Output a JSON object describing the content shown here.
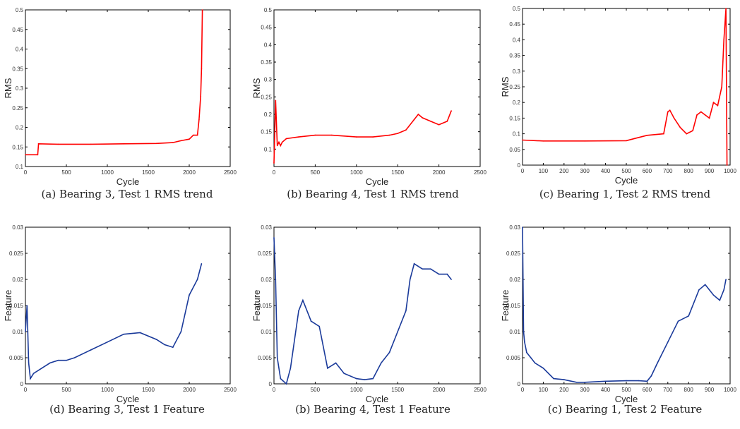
{
  "colors": {
    "rms": "#ff0000",
    "feature": "#1a3a9a",
    "axis": "#000000"
  },
  "chart_data": [
    {
      "type": "line",
      "caption": "(a) Bearing 3, Test 1 RMS trend",
      "xlabel": "Cycle",
      "ylabel": "RMS",
      "xlim": [
        0,
        2500
      ],
      "ylim": [
        0.1,
        0.5
      ],
      "xticks": [
        0,
        500,
        1000,
        1500,
        2000,
        2500
      ],
      "xtick_labels": [
        "0",
        "500",
        "1000",
        "1500",
        "2000",
        "2500"
      ],
      "yticks": [
        0.1,
        0.15,
        0.2,
        0.25,
        0.3,
        0.35,
        0.4,
        0.45,
        0.5
      ],
      "ytick_labels": [
        "0.1",
        "0.15",
        "0.2",
        "0.25",
        "0.3",
        "0.35",
        "0.4",
        "0.45",
        "0.5"
      ],
      "x": [
        0,
        150,
        160,
        400,
        800,
        1200,
        1600,
        1800,
        1900,
        2000,
        2050,
        2100,
        2120,
        2140,
        2150,
        2160
      ],
      "y": [
        0.13,
        0.13,
        0.158,
        0.157,
        0.157,
        0.158,
        0.159,
        0.161,
        0.166,
        0.17,
        0.18,
        0.18,
        0.22,
        0.28,
        0.35,
        0.5
      ]
    },
    {
      "type": "line",
      "caption": "(b) Bearing 4, Test 1 RMS trend",
      "xlabel": "Cycle",
      "ylabel": "RMS",
      "xlim": [
        0,
        2500
      ],
      "ylim": [
        0.05,
        0.5
      ],
      "xticks": [
        0,
        500,
        1000,
        1500,
        2000,
        2500
      ],
      "xtick_labels": [
        "0",
        "500",
        "1000",
        "1500",
        "2000",
        "2500"
      ],
      "yticks": [
        0.1,
        0.15,
        0.2,
        0.25,
        0.3,
        0.35,
        0.4,
        0.45,
        0.5
      ],
      "ytick_labels": [
        "0.1",
        "0.15",
        "0.2",
        "0.25",
        "0.3",
        "0.35",
        "0.4",
        "0.45",
        "0.5"
      ],
      "x": [
        0,
        20,
        40,
        60,
        80,
        100,
        150,
        300,
        500,
        700,
        1000,
        1200,
        1400,
        1500,
        1600,
        1700,
        1750,
        1800,
        1900,
        2000,
        2100,
        2150
      ],
      "y": [
        0.06,
        0.24,
        0.11,
        0.12,
        0.11,
        0.12,
        0.13,
        0.135,
        0.14,
        0.14,
        0.135,
        0.135,
        0.14,
        0.145,
        0.155,
        0.185,
        0.2,
        0.19,
        0.18,
        0.17,
        0.18,
        0.21
      ]
    },
    {
      "type": "line",
      "caption": "(c) Bearing 1, Test 2 RMS trend",
      "xlabel": "Cycle",
      "ylabel": "RMS",
      "xlim": [
        0,
        1000
      ],
      "ylim": [
        0,
        0.5
      ],
      "xticks": [
        0,
        100,
        200,
        300,
        400,
        500,
        600,
        700,
        800,
        900,
        1000
      ],
      "xtick_labels": [
        "0",
        "100",
        "200",
        "300",
        "400",
        "500",
        "600",
        "700",
        "800",
        "900",
        "1000"
      ],
      "yticks": [
        0,
        0.05,
        0.1,
        0.15,
        0.2,
        0.25,
        0.3,
        0.35,
        0.4,
        0.45,
        0.5
      ],
      "ytick_labels": [
        "0",
        "0.05",
        "0.1",
        "0.15",
        "0.2",
        "0.25",
        "0.3",
        "0.35",
        "0.4",
        "0.45",
        "0.5"
      ],
      "x": [
        0,
        100,
        300,
        500,
        540,
        600,
        680,
        700,
        710,
        730,
        760,
        790,
        820,
        840,
        860,
        880,
        900,
        920,
        940,
        960,
        970,
        980,
        985
      ],
      "y": [
        0.08,
        0.077,
        0.077,
        0.078,
        0.085,
        0.095,
        0.1,
        0.17,
        0.175,
        0.15,
        0.12,
        0.1,
        0.11,
        0.16,
        0.17,
        0.16,
        0.15,
        0.2,
        0.19,
        0.25,
        0.4,
        0.5,
        0.0
      ]
    },
    {
      "type": "line",
      "caption": "(d) Bearing 3, Test 1 Feature",
      "xlabel": "Cycle",
      "ylabel": "Feature",
      "xlim": [
        0,
        2500
      ],
      "ylim": [
        0,
        0.03
      ],
      "xticks": [
        0,
        500,
        1000,
        1500,
        2000,
        2500
      ],
      "xtick_labels": [
        "0",
        "500",
        "1000",
        "1500",
        "2000",
        "2500"
      ],
      "yticks": [
        0,
        0.005,
        0.01,
        0.015,
        0.02,
        0.025,
        0.03
      ],
      "ytick_labels": [
        "0",
        "0.005",
        "0.01",
        "0.015",
        "0.02",
        "0.025",
        "0.03"
      ],
      "x": [
        0,
        20,
        40,
        60,
        100,
        200,
        300,
        400,
        500,
        600,
        800,
        1000,
        1200,
        1400,
        1600,
        1700,
        1800,
        1900,
        2000,
        2100,
        2150
      ],
      "y": [
        0.01,
        0.015,
        0.004,
        0.001,
        0.002,
        0.003,
        0.004,
        0.0045,
        0.0045,
        0.005,
        0.0065,
        0.008,
        0.0095,
        0.0098,
        0.0085,
        0.0075,
        0.007,
        0.01,
        0.017,
        0.02,
        0.023
      ]
    },
    {
      "type": "line",
      "caption": "(b) Bearing 4, Test 1 Feature",
      "xlabel": "Cycle",
      "ylabel": "Feature",
      "xlim": [
        0,
        2500
      ],
      "ylim": [
        0,
        0.03
      ],
      "xticks": [
        0,
        500,
        1000,
        1500,
        2000,
        2500
      ],
      "xtick_labels": [
        "0",
        "500",
        "1000",
        "1500",
        "2000",
        "2500"
      ],
      "yticks": [
        0,
        0.005,
        0.01,
        0.015,
        0.02,
        0.025,
        0.03
      ],
      "ytick_labels": [
        "0",
        "0.005",
        "0.01",
        "0.015",
        "0.02",
        "0.025",
        "0.03"
      ],
      "x": [
        0,
        20,
        40,
        80,
        150,
        200,
        300,
        350,
        450,
        550,
        650,
        750,
        850,
        1000,
        1100,
        1200,
        1300,
        1400,
        1500,
        1600,
        1650,
        1700,
        1800,
        1900,
        2000,
        2100,
        2150
      ],
      "y": [
        0.028,
        0.02,
        0.005,
        0.001,
        0,
        0.003,
        0.014,
        0.016,
        0.012,
        0.011,
        0.003,
        0.004,
        0.002,
        0.001,
        0.0008,
        0.001,
        0.004,
        0.006,
        0.01,
        0.014,
        0.02,
        0.023,
        0.022,
        0.022,
        0.021,
        0.021,
        0.02
      ]
    },
    {
      "type": "line",
      "caption": "(c) Bearing 1, Test 2 Feature",
      "xlabel": "Cycle",
      "ylabel": "Feature",
      "xlim": [
        0,
        1000
      ],
      "ylim": [
        0,
        0.03
      ],
      "xticks": [
        0,
        100,
        200,
        300,
        400,
        500,
        600,
        700,
        800,
        900,
        1000
      ],
      "xtick_labels": [
        "0",
        "100",
        "200",
        "300",
        "400",
        "500",
        "600",
        "700",
        "800",
        "900",
        "1000"
      ],
      "yticks": [
        0,
        0.005,
        0.01,
        0.015,
        0.02,
        0.025,
        0.03
      ],
      "ytick_labels": [
        "0",
        "0.005",
        "0.01",
        "0.015",
        "0.02",
        "0.025",
        "0.03"
      ],
      "x": [
        0,
        5,
        10,
        20,
        40,
        60,
        100,
        150,
        200,
        260,
        300,
        400,
        500,
        560,
        600,
        620,
        650,
        700,
        750,
        800,
        850,
        880,
        900,
        920,
        950,
        970,
        980
      ],
      "y": [
        0.03,
        0.01,
        0.008,
        0.006,
        0.005,
        0.004,
        0.003,
        0.001,
        0.0008,
        0.0003,
        0.0003,
        0.0005,
        0.0006,
        0.0006,
        0.0005,
        0.0015,
        0.004,
        0.008,
        0.012,
        0.013,
        0.018,
        0.019,
        0.018,
        0.017,
        0.016,
        0.018,
        0.02
      ]
    }
  ]
}
